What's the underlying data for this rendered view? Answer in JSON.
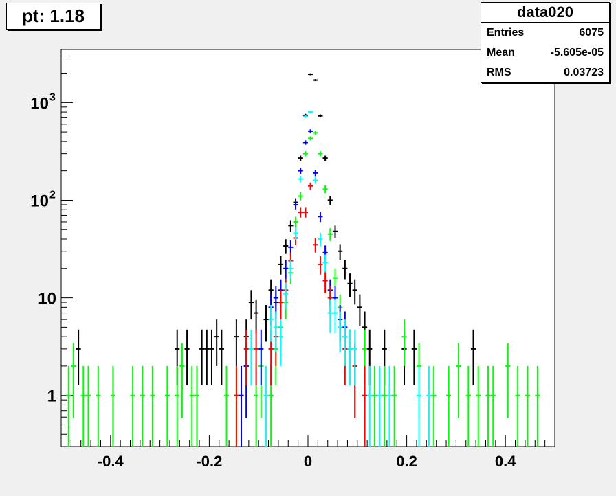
{
  "title_box": {
    "text": "pt: 1.18"
  },
  "stats_box": {
    "name": "data020",
    "rows": [
      {
        "label": "Entries",
        "value": "6075"
      },
      {
        "label": "Mean",
        "value": "-5.605e-05"
      },
      {
        "label": "RMS",
        "value": "0.03723"
      }
    ]
  },
  "chart_data": {
    "type": "scatter",
    "title": "",
    "xlabel": "",
    "ylabel": "",
    "xlim": [
      -0.5,
      0.5
    ],
    "ylim": [
      0.3,
      3500
    ],
    "yscale": "log",
    "grid": false,
    "xticks": [
      {
        "value": -0.4,
        "label": "-0.4"
      },
      {
        "value": -0.2,
        "label": "-0.2"
      },
      {
        "value": 0,
        "label": "0"
      },
      {
        "value": 0.2,
        "label": "0.2"
      },
      {
        "value": 0.4,
        "label": "0.4"
      }
    ],
    "yticks": [
      {
        "value": 1,
        "label": "1"
      },
      {
        "value": 10,
        "label": "10"
      },
      {
        "value": 100,
        "label": "10",
        "exp": "2"
      },
      {
        "value": 1000,
        "label": "10",
        "exp": "3"
      }
    ],
    "series": [
      {
        "color": "#000000",
        "points": [
          [
            -0.465,
            3
          ],
          [
            -0.265,
            3
          ],
          [
            -0.245,
            3
          ],
          [
            -0.215,
            3
          ],
          [
            -0.205,
            3
          ],
          [
            -0.195,
            3
          ],
          [
            -0.185,
            4
          ],
          [
            -0.175,
            3
          ],
          [
            -0.145,
            4
          ],
          [
            -0.125,
            4
          ],
          [
            -0.115,
            9
          ],
          [
            -0.105,
            7
          ],
          [
            -0.085,
            6
          ],
          [
            -0.075,
            12
          ],
          [
            -0.065,
            9
          ],
          [
            -0.055,
            22
          ],
          [
            -0.045,
            34
          ],
          [
            -0.035,
            55
          ],
          [
            -0.025,
            95
          ],
          [
            -0.015,
            270
          ],
          [
            -0.005,
            740
          ],
          [
            0.005,
            1950
          ],
          [
            0.015,
            1700
          ],
          [
            0.025,
            730
          ],
          [
            0.035,
            270
          ],
          [
            0.045,
            100
          ],
          [
            0.055,
            48
          ],
          [
            0.065,
            30
          ],
          [
            0.075,
            20
          ],
          [
            0.085,
            14
          ],
          [
            0.095,
            12
          ],
          [
            0.105,
            8
          ],
          [
            0.115,
            5
          ],
          [
            0.125,
            3
          ],
          [
            0.155,
            3
          ],
          [
            0.195,
            3
          ],
          [
            0.215,
            3
          ],
          [
            0.335,
            3
          ]
        ]
      },
      {
        "color": "#00ff00",
        "points": [
          [
            -0.485,
            1
          ],
          [
            -0.475,
            2
          ],
          [
            -0.455,
            1
          ],
          [
            -0.445,
            1
          ],
          [
            -0.425,
            1
          ],
          [
            -0.395,
            1
          ],
          [
            -0.355,
            1
          ],
          [
            -0.335,
            1
          ],
          [
            -0.315,
            1
          ],
          [
            -0.285,
            1
          ],
          [
            -0.265,
            1
          ],
          [
            -0.255,
            2
          ],
          [
            -0.235,
            1
          ],
          [
            -0.225,
            1
          ],
          [
            -0.165,
            1
          ],
          [
            -0.145,
            1
          ],
          [
            -0.125,
            2
          ],
          [
            -0.105,
            1
          ],
          [
            -0.095,
            2
          ],
          [
            -0.075,
            1
          ],
          [
            -0.065,
            3
          ],
          [
            -0.055,
            5
          ],
          [
            -0.045,
            9
          ],
          [
            -0.035,
            18
          ],
          [
            -0.025,
            60
          ],
          [
            -0.015,
            110
          ],
          [
            -0.005,
            300
          ],
          [
            0.005,
            430
          ],
          [
            0.015,
            490
          ],
          [
            0.025,
            300
          ],
          [
            0.035,
            130
          ],
          [
            0.045,
            45
          ],
          [
            0.055,
            16
          ],
          [
            0.065,
            8
          ],
          [
            0.075,
            4
          ],
          [
            0.085,
            3
          ],
          [
            0.095,
            2
          ],
          [
            0.115,
            3
          ],
          [
            0.135,
            1
          ],
          [
            0.155,
            1
          ],
          [
            0.175,
            1
          ],
          [
            0.195,
            4
          ],
          [
            0.225,
            2
          ],
          [
            0.255,
            1
          ],
          [
            0.285,
            1
          ],
          [
            0.305,
            2
          ],
          [
            0.325,
            1
          ],
          [
            0.345,
            1
          ],
          [
            0.365,
            1
          ],
          [
            0.375,
            1
          ],
          [
            0.405,
            2
          ],
          [
            0.425,
            1
          ],
          [
            0.445,
            1
          ],
          [
            0.465,
            1
          ]
        ]
      },
      {
        "color": "#0000ff",
        "points": [
          [
            -0.135,
            1
          ],
          [
            -0.125,
            2
          ],
          [
            -0.095,
            3
          ],
          [
            -0.075,
            8
          ],
          [
            -0.065,
            10
          ],
          [
            -0.055,
            12
          ],
          [
            -0.045,
            20
          ],
          [
            -0.035,
            33
          ],
          [
            -0.025,
            90
          ],
          [
            -0.015,
            200
          ],
          [
            -0.005,
            390
          ],
          [
            0.005,
            510
          ],
          [
            0.015,
            190
          ],
          [
            0.025,
            68
          ],
          [
            0.035,
            29
          ],
          [
            0.045,
            12
          ],
          [
            0.055,
            10
          ],
          [
            0.065,
            6
          ],
          [
            0.075,
            5
          ],
          [
            0.085,
            3
          ]
        ]
      },
      {
        "color": "#ff0000",
        "points": [
          [
            -0.145,
            1
          ],
          [
            -0.125,
            3
          ],
          [
            -0.105,
            3
          ],
          [
            -0.075,
            3
          ],
          [
            -0.065,
            4
          ],
          [
            -0.055,
            9
          ],
          [
            -0.045,
            12
          ],
          [
            -0.035,
            24
          ],
          [
            -0.025,
            41
          ],
          [
            -0.015,
            75
          ],
          [
            -0.005,
            75
          ],
          [
            0.005,
            140
          ],
          [
            0.015,
            35
          ],
          [
            0.025,
            22
          ],
          [
            0.035,
            15
          ],
          [
            0.045,
            10
          ],
          [
            0.055,
            7
          ],
          [
            0.065,
            5
          ],
          [
            0.075,
            3
          ],
          [
            0.095,
            2
          ],
          [
            0.115,
            1
          ]
        ]
      },
      {
        "color": "#00ffff",
        "points": [
          [
            -0.115,
            3
          ],
          [
            -0.085,
            1
          ],
          [
            -0.075,
            6
          ],
          [
            -0.065,
            5
          ],
          [
            -0.055,
            4
          ],
          [
            -0.045,
            11
          ],
          [
            -0.035,
            20
          ],
          [
            -0.025,
            46
          ],
          [
            -0.015,
            165
          ],
          [
            -0.005,
            720
          ],
          [
            0.005,
            800
          ],
          [
            0.015,
            160
          ],
          [
            0.025,
            40
          ],
          [
            0.035,
            23
          ],
          [
            0.045,
            7
          ],
          [
            0.055,
            7
          ],
          [
            0.065,
            5
          ],
          [
            0.075,
            4
          ],
          [
            0.085,
            3
          ],
          [
            0.095,
            3
          ],
          [
            0.125,
            1
          ],
          [
            0.145,
            1
          ],
          [
            0.165,
            1
          ],
          [
            0.225,
            1
          ],
          [
            0.245,
            1
          ]
        ]
      }
    ]
  }
}
